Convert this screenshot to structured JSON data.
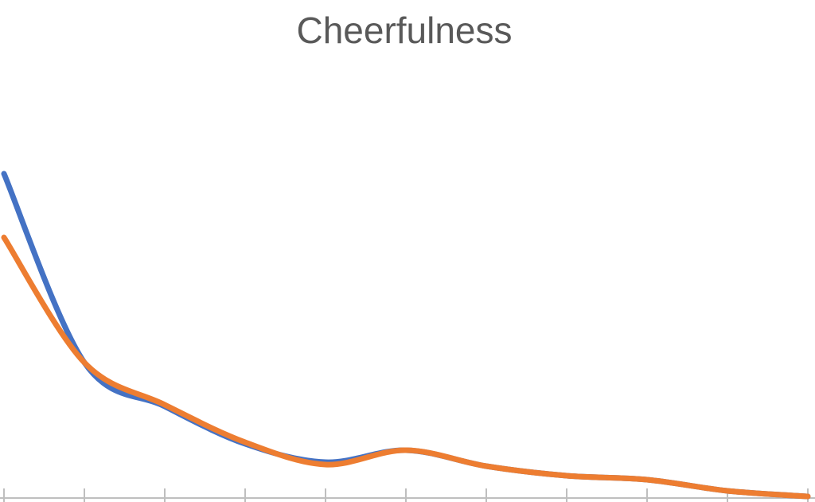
{
  "chart_data": {
    "type": "line",
    "title": "Cheerfulness",
    "categories": [
      null,
      null,
      null,
      null,
      null,
      null,
      null,
      null,
      null,
      null,
      null
    ],
    "series": [
      {
        "color": "#4472c4",
        "values": [
          81.4,
          34,
          23,
          13.6,
          9,
          12,
          8,
          5.6,
          4.6,
          1.8,
          0.4
        ]
      },
      {
        "color": "#ed7d31",
        "values": [
          65.4,
          34,
          23.4,
          14,
          8.4,
          12,
          8,
          5.6,
          4.6,
          1.8,
          0.4
        ]
      }
    ],
    "ylim": [
      0,
      100
    ],
    "smooth": true
  }
}
